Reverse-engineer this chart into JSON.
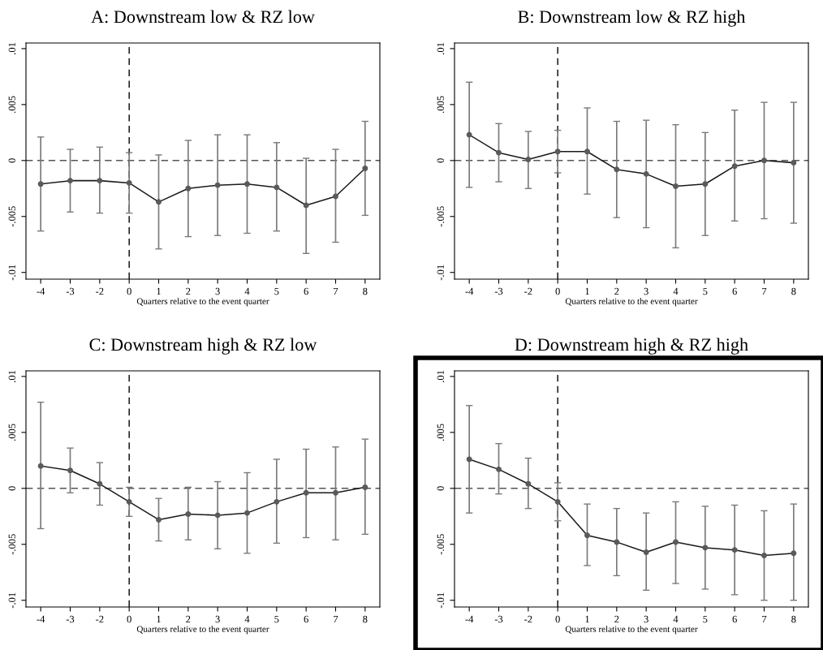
{
  "chart_data": [
    {
      "type": "line",
      "title": "A: Downstream low & RZ low",
      "xlabel": "Quarters relative to the event quarter",
      "categories": [
        "-4",
        "-3",
        "-2",
        "0",
        "1",
        "2",
        "3",
        "4",
        "5",
        "6",
        "7",
        "8"
      ],
      "series": [
        {
          "color": "#1a1a1a",
          "values": [
            -0.0021,
            -0.0018,
            -0.0018,
            -0.002,
            -0.0037,
            -0.0025,
            -0.0022,
            -0.0021,
            -0.0024,
            -0.004,
            -0.0032,
            -0.0007
          ],
          "errors": [
            [
              -0.0063,
              0.0021
            ],
            [
              -0.0046,
              0.001
            ],
            [
              -0.0047,
              0.0012
            ],
            [
              -0.0047,
              0.0007
            ],
            [
              -0.0079,
              0.0005
            ],
            [
              -0.0068,
              0.0018
            ],
            [
              -0.0067,
              0.0023
            ],
            [
              -0.0065,
              0.0023
            ],
            [
              -0.0063,
              0.0016
            ],
            [
              -0.0083,
              0.0002
            ],
            [
              -0.0073,
              0.001
            ],
            [
              -0.0049,
              0.0035
            ]
          ]
        }
      ],
      "marker": "circle",
      "ylim": [
        -0.0106,
        0.0105
      ],
      "yticks": [
        {
          "value": -0.01,
          "label": "-.01"
        },
        {
          "value": -0.005,
          "label": "-.005"
        },
        0,
        {
          "value": 0.005,
          "label": ".005"
        },
        {
          "value": 0.01,
          "label": ".01"
        }
      ],
      "ref_lines": [
        {
          "axis": "y",
          "value": 0,
          "color": "#555555",
          "line_style": "dashed"
        },
        {
          "axis": "x",
          "value": "0",
          "color": "#000000",
          "line_style": "dashed"
        }
      ],
      "grid": false,
      "legend": false
    },
    {
      "type": "line",
      "title": "B: Downstream low & RZ high",
      "xlabel": "Quarters relative to the event quarter",
      "categories": [
        "-4",
        "-3",
        "-2",
        "0",
        "1",
        "2",
        "3",
        "4",
        "5",
        "6",
        "7",
        "8"
      ],
      "series": [
        {
          "color": "#1a1a1a",
          "values": [
            0.0023,
            0.0007,
            0.0001,
            0.0008,
            0.0008,
            -0.0008,
            -0.0012,
            -0.0023,
            -0.0021,
            -0.0005,
            0.0,
            -0.0002
          ],
          "errors": [
            [
              -0.0024,
              0.007
            ],
            [
              -0.0019,
              0.0033
            ],
            [
              -0.0025,
              0.0026
            ],
            [
              -0.0011,
              0.0027
            ],
            [
              -0.003,
              0.0047
            ],
            [
              -0.0051,
              0.0035
            ],
            [
              -0.006,
              0.0036
            ],
            [
              -0.0078,
              0.0032
            ],
            [
              -0.0067,
              0.0025
            ],
            [
              -0.0054,
              0.0045
            ],
            [
              -0.0052,
              0.0052
            ],
            [
              -0.0056,
              0.0052
            ]
          ]
        }
      ],
      "marker": "circle",
      "ylim": [
        -0.0106,
        0.0105
      ],
      "yticks": [
        {
          "value": -0.01,
          "label": "-.01"
        },
        {
          "value": -0.005,
          "label": "-.005"
        },
        0,
        {
          "value": 0.005,
          "label": ".005"
        },
        {
          "value": 0.01,
          "label": ".01"
        }
      ],
      "ref_lines": [
        {
          "axis": "y",
          "value": 0,
          "color": "#555555",
          "line_style": "dashed"
        },
        {
          "axis": "x",
          "value": "0",
          "color": "#000000",
          "line_style": "dashed"
        }
      ],
      "grid": false,
      "legend": false
    },
    {
      "type": "line",
      "title": "C: Downstream high & RZ low",
      "xlabel": "Quarters relative to the event quarter",
      "categories": [
        "-4",
        "-3",
        "-2",
        "0",
        "1",
        "2",
        "3",
        "4",
        "5",
        "6",
        "7",
        "8"
      ],
      "series": [
        {
          "color": "#1a1a1a",
          "values": [
            0.002,
            0.0016,
            0.0004,
            -0.0012,
            -0.0028,
            -0.0023,
            -0.0024,
            -0.0022,
            -0.0012,
            -0.0004,
            -0.0004,
            0.0001
          ],
          "errors": [
            [
              -0.0036,
              0.0077
            ],
            [
              -0.0004,
              0.0036
            ],
            [
              -0.0015,
              0.0023
            ],
            [
              -0.0025,
              0.0001
            ],
            [
              -0.0047,
              -0.0009
            ],
            [
              -0.0046,
              0.0001
            ],
            [
              -0.0054,
              0.0006
            ],
            [
              -0.0058,
              0.0014
            ],
            [
              -0.0049,
              0.0026
            ],
            [
              -0.0044,
              0.0035
            ],
            [
              -0.0046,
              0.0037
            ],
            [
              -0.0041,
              0.0044
            ]
          ]
        }
      ],
      "marker": "circle",
      "ylim": [
        -0.0106,
        0.0105
      ],
      "yticks": [
        {
          "value": -0.01,
          "label": "-.01"
        },
        {
          "value": -0.005,
          "label": "-.005"
        },
        0,
        {
          "value": 0.005,
          "label": ".005"
        },
        {
          "value": 0.01,
          "label": ".01"
        }
      ],
      "ref_lines": [
        {
          "axis": "y",
          "value": 0,
          "color": "#555555",
          "line_style": "dashed"
        },
        {
          "axis": "x",
          "value": "0",
          "color": "#000000",
          "line_style": "dashed"
        }
      ],
      "grid": false,
      "legend": false
    },
    {
      "type": "line",
      "title": "D: Downstream high & RZ high",
      "xlabel": "Quarters relative to the event quarter",
      "categories": [
        "-4",
        "-3",
        "-2",
        "0",
        "1",
        "2",
        "3",
        "4",
        "5",
        "6",
        "7",
        "8"
      ],
      "series": [
        {
          "color": "#1a1a1a",
          "values": [
            0.0026,
            0.0017,
            0.0004,
            -0.0012,
            -0.0042,
            -0.0048,
            -0.0057,
            -0.0048,
            -0.0053,
            -0.0055,
            -0.006,
            -0.0058
          ],
          "errors": [
            [
              -0.0022,
              0.0074
            ],
            [
              -0.0005,
              0.004
            ],
            [
              -0.0018,
              0.0027
            ],
            [
              -0.0029,
              0.0005
            ],
            [
              -0.0069,
              -0.0014
            ],
            [
              -0.0078,
              -0.0018
            ],
            [
              -0.0091,
              -0.0022
            ],
            [
              -0.0085,
              -0.0012
            ],
            [
              -0.009,
              -0.0016
            ],
            [
              -0.0095,
              -0.0015
            ],
            [
              -0.01,
              -0.002
            ],
            [
              -0.01,
              -0.0014
            ]
          ]
        }
      ],
      "marker": "circle",
      "ylim": [
        -0.0106,
        0.0105
      ],
      "yticks": [
        {
          "value": -0.01,
          "label": "-.01"
        },
        {
          "value": -0.005,
          "label": "-.005"
        },
        0,
        {
          "value": 0.005,
          "label": ".005"
        },
        {
          "value": 0.01,
          "label": ".01"
        }
      ],
      "ref_lines": [
        {
          "axis": "y",
          "value": 0,
          "color": "#555555",
          "line_style": "dashed"
        },
        {
          "axis": "x",
          "value": "0",
          "color": "#000000",
          "line_style": "dashed"
        }
      ],
      "grid": false,
      "legend": false
    }
  ]
}
